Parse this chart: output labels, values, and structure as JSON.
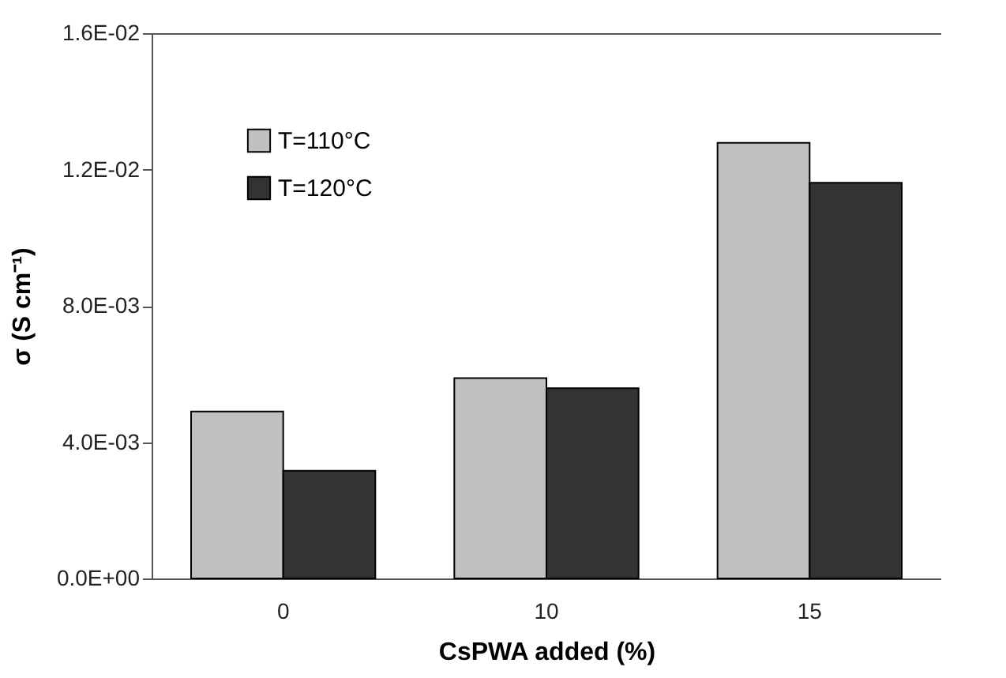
{
  "chart_data": {
    "type": "bar",
    "xlabel": "CsPWA added (%)",
    "ylabel": "σ (S cm⁻¹)",
    "categories": [
      "0",
      "10",
      "15"
    ],
    "series": [
      {
        "name": "T=110°C",
        "color": "#c0c0c0",
        "values": [
          0.0049,
          0.00588,
          0.01278
        ]
      },
      {
        "name": "T=120°C",
        "color": "#333333",
        "values": [
          0.00316,
          0.00558,
          0.01161
        ]
      }
    ],
    "ylim": [
      0,
      0.016
    ],
    "yticks": [
      {
        "value": 0,
        "label": "0.0E+00"
      },
      {
        "value": 0.004,
        "label": "4.0E-03"
      },
      {
        "value": 0.008,
        "label": "8.0E-03"
      },
      {
        "value": 0.012,
        "label": "1.2E-02"
      },
      {
        "value": 0.016,
        "label": "1.6E-02"
      }
    ],
    "grid": false,
    "legend": "top left"
  }
}
